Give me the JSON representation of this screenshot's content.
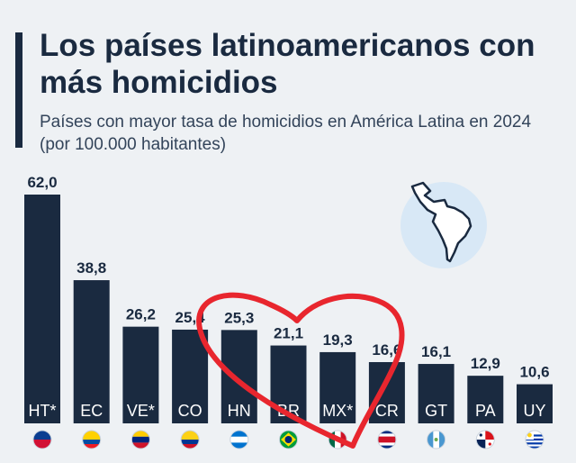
{
  "title": "Los países latinoamericanos con más homicidios",
  "subtitle": "Países con mayor tasa de homicidios en América Latina en 2024 (por 100.000 habitantes)",
  "colors": {
    "bar": "#1a2a40",
    "background": "#eef1f4",
    "heart": "#e8262e",
    "map_glow": "#d8e8f6"
  },
  "chart_data": {
    "type": "bar",
    "title": "Los países latinoamericanos con más homicidios",
    "subtitle": "Países con mayor tasa de homicidios en América Latina en 2024 (por 100.000 habitantes)",
    "categories": [
      "HT*",
      "EC",
      "VE*",
      "CO",
      "HN",
      "BR",
      "MX*",
      "CR",
      "GT",
      "PA",
      "UY"
    ],
    "values": [
      62.0,
      38.8,
      26.2,
      25.4,
      25.3,
      21.1,
      19.3,
      16.6,
      16.1,
      12.9,
      10.6
    ],
    "value_labels": [
      "62,0",
      "38,8",
      "26,2",
      "25,4",
      "25,3",
      "21,1",
      "19,3",
      "16,6",
      "16,1",
      "12,9",
      "10,6"
    ],
    "flags": [
      "haiti-flag-icon",
      "ecuador-flag-icon",
      "venezuela-flag-icon",
      "colombia-flag-icon",
      "honduras-flag-icon",
      "brazil-flag-icon",
      "mexico-flag-icon",
      "costa-rica-flag-icon",
      "guatemala-flag-icon",
      "panama-flag-icon",
      "uruguay-flag-icon"
    ],
    "ylim": [
      0,
      62
    ],
    "grid": false,
    "legend": "none"
  }
}
